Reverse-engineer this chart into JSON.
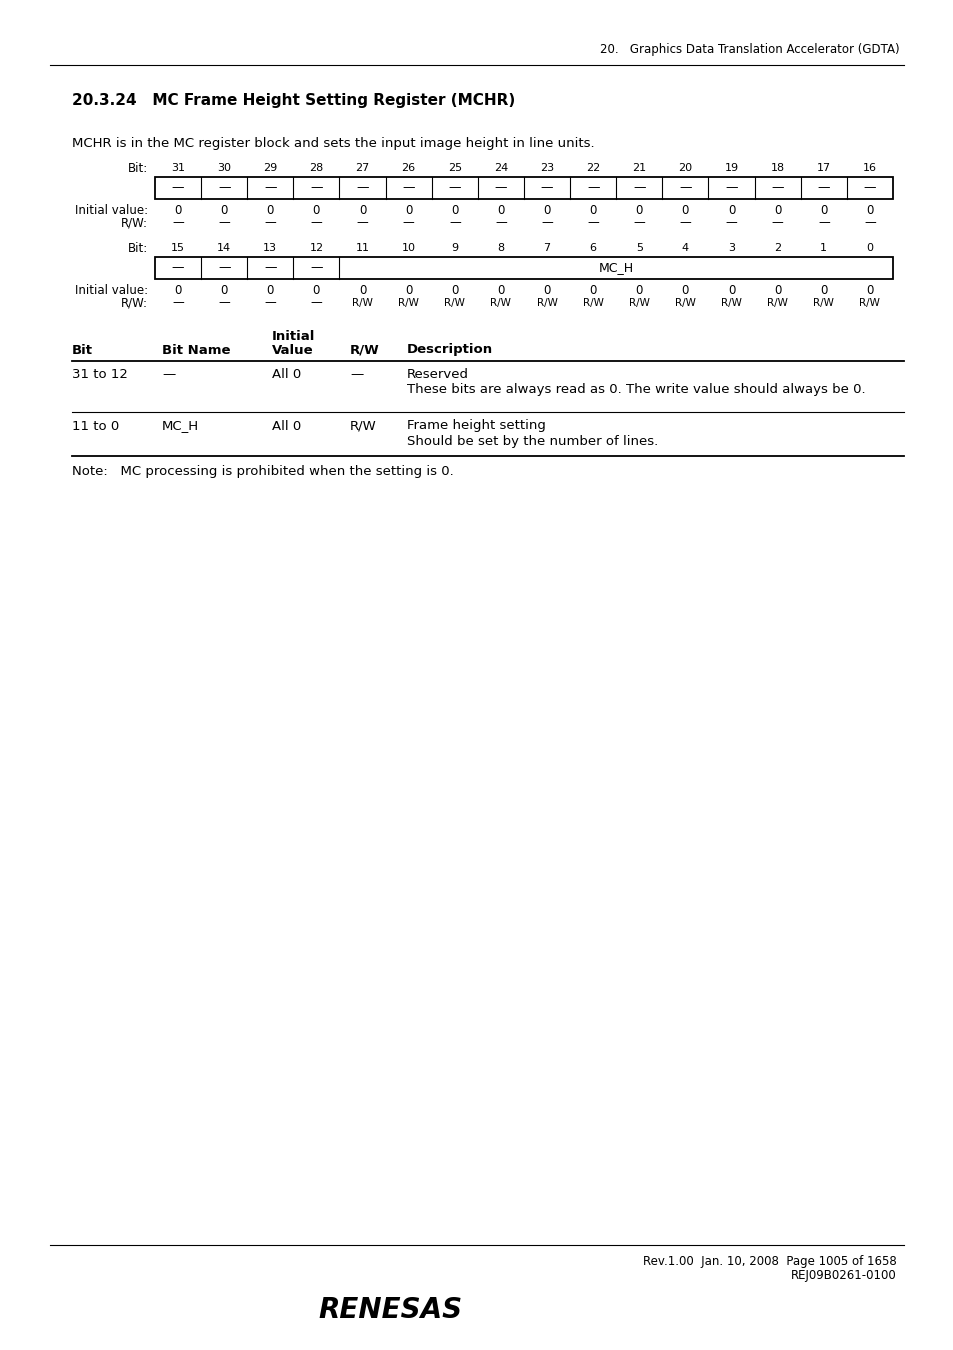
{
  "page_header": "20.   Graphics Data Translation Accelerator (GDTA)",
  "section_title": "20.3.24   MC Frame Height Setting Register (MCHR)",
  "description": "MCHR is in the MC register block and sets the input image height in line units.",
  "bits_row1": [
    31,
    30,
    29,
    28,
    27,
    26,
    25,
    24,
    23,
    22,
    21,
    20,
    19,
    18,
    17,
    16
  ],
  "fields_row1": [
    "—",
    "—",
    "—",
    "—",
    "—",
    "—",
    "—",
    "—",
    "—",
    "—",
    "—",
    "—",
    "—",
    "—",
    "—",
    "—"
  ],
  "init_row1": [
    "0",
    "0",
    "0",
    "0",
    "0",
    "0",
    "0",
    "0",
    "0",
    "0",
    "0",
    "0",
    "0",
    "0",
    "0",
    "0"
  ],
  "rw_row1": [
    "—",
    "—",
    "—",
    "—",
    "—",
    "—",
    "—",
    "—",
    "—",
    "—",
    "—",
    "—",
    "—",
    "—",
    "—",
    "—"
  ],
  "bits_row2": [
    15,
    14,
    13,
    12,
    11,
    10,
    9,
    8,
    7,
    6,
    5,
    4,
    3,
    2,
    1,
    0
  ],
  "fields_row2_left": [
    "—",
    "—",
    "—",
    "—"
  ],
  "fields_row2_right_label": "MC_H",
  "init_row2": [
    "0",
    "0",
    "0",
    "0",
    "0",
    "0",
    "0",
    "0",
    "0",
    "0",
    "0",
    "0",
    "0",
    "0",
    "0",
    "0"
  ],
  "rw_row2_left": [
    "—",
    "—",
    "—",
    "—"
  ],
  "rw_row2_right": [
    "R/W",
    "R/W",
    "R/W",
    "R/W",
    "R/W",
    "R/W",
    "R/W",
    "R/W",
    "R/W",
    "R/W",
    "R/W",
    "R/W"
  ],
  "tbl_rows": [
    {
      "bit": "31 to 12",
      "bit_name": "—",
      "init_val": "All 0",
      "rw": "—",
      "desc1": "Reserved",
      "desc2": "These bits are always read as 0. The write value should always be 0."
    },
    {
      "bit": "11 to 0",
      "bit_name": "MC_H",
      "init_val": "All 0",
      "rw": "R/W",
      "desc1": "Frame height setting",
      "desc2": "Should be set by the number of lines."
    }
  ],
  "note": "Note:   MC processing is prohibited when the setting is 0.",
  "footer_line1": "Rev.1.00  Jan. 10, 2008  Page 1005 of 1658",
  "footer_line2": "REJ09B0261-0100"
}
